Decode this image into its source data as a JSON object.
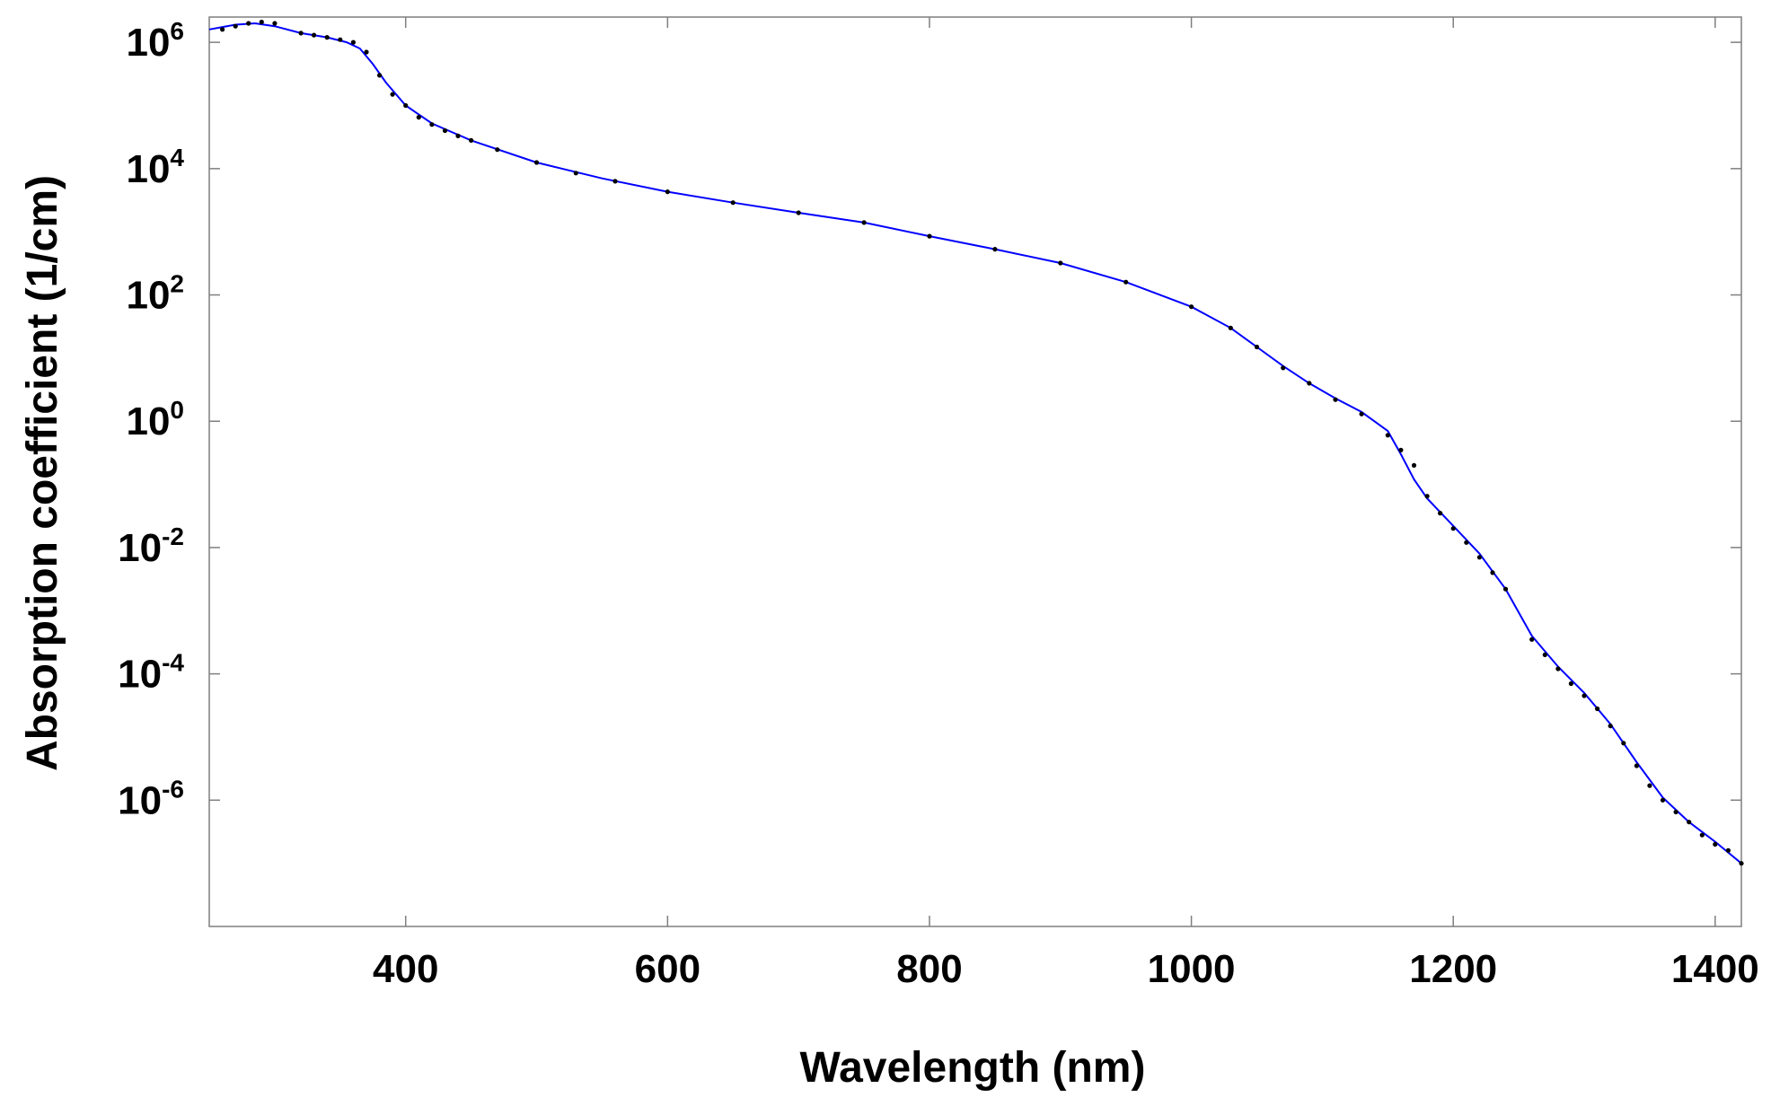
{
  "chart_data": {
    "type": "scatter",
    "xlabel": "Wavelength (nm)",
    "ylabel": "Absorption coefficient (1/cm)",
    "y_scale": "log",
    "xlim": [
      250,
      1420
    ],
    "ylim_exponent": [
      -8.0,
      6.4
    ],
    "x_ticks": [
      400,
      600,
      800,
      1000,
      1200,
      1400
    ],
    "x_tick_labels": [
      "400",
      "600",
      "800",
      "1000",
      "1200",
      "1400"
    ],
    "y_ticks": [
      {
        "base": "10",
        "exp": "6",
        "value_exp": 6
      },
      {
        "base": "10",
        "exp": "4",
        "value_exp": 4
      },
      {
        "base": "10",
        "exp": "2",
        "value_exp": 2
      },
      {
        "base": "10",
        "exp": "0",
        "value_exp": 0
      },
      {
        "base": "10",
        "exp": "-2",
        "value_exp": -2
      },
      {
        "base": "10",
        "exp": "-4",
        "value_exp": -4
      },
      {
        "base": "10",
        "exp": "-6",
        "value_exp": -6
      }
    ],
    "grid": false,
    "series": [
      {
        "kind": "points",
        "color": "#000000",
        "points": [
          [
            260,
            1600000.0
          ],
          [
            270,
            1800000.0
          ],
          [
            280,
            2000000.0
          ],
          [
            290,
            2100000.0
          ],
          [
            300,
            2000000.0
          ],
          [
            320,
            1400000.0
          ],
          [
            330,
            1300000.0
          ],
          [
            340,
            1200000.0
          ],
          [
            350,
            1100000.0
          ],
          [
            360,
            1000000.0
          ],
          [
            370,
            700000.0
          ],
          [
            380,
            300000.0
          ],
          [
            390,
            150000.0
          ],
          [
            400,
            100000.0
          ],
          [
            410,
            65000.0
          ],
          [
            420,
            50000.0
          ],
          [
            430,
            40000.0
          ],
          [
            440,
            33000.0
          ],
          [
            450,
            28000.0
          ],
          [
            470,
            20000.0
          ],
          [
            500,
            12500.0
          ],
          [
            530,
            8500.0
          ],
          [
            560,
            6300.0
          ],
          [
            600,
            4300.0
          ],
          [
            650,
            2900.0
          ],
          [
            700,
            2000.0
          ],
          [
            750,
            1400.0
          ],
          [
            800,
            850.0
          ],
          [
            850,
            530.0
          ],
          [
            900,
            320.0
          ],
          [
            950,
            160.0
          ],
          [
            1000,
            65
          ],
          [
            1030,
            30
          ],
          [
            1050,
            15
          ],
          [
            1070,
            7
          ],
          [
            1090,
            4
          ],
          [
            1110,
            2.2
          ],
          [
            1130,
            1.3
          ],
          [
            1150,
            0.6
          ],
          [
            1160,
            0.35
          ],
          [
            1170,
            0.2
          ],
          [
            1180,
            0.065
          ],
          [
            1190,
            0.035
          ],
          [
            1200,
            0.02
          ],
          [
            1210,
            0.012
          ],
          [
            1220,
            0.007
          ],
          [
            1230,
            0.004
          ],
          [
            1240,
            0.0022
          ],
          [
            1260,
            0.00035
          ],
          [
            1270,
            0.0002
          ],
          [
            1280,
            0.00012
          ],
          [
            1290,
            7e-05
          ],
          [
            1300,
            4.5e-05
          ],
          [
            1310,
            2.8e-05
          ],
          [
            1320,
            1.5e-05
          ],
          [
            1330,
            8e-06
          ],
          [
            1340,
            3.5e-06
          ],
          [
            1350,
            1.7e-06
          ],
          [
            1360,
            1e-06
          ],
          [
            1370,
            6.5e-07
          ],
          [
            1380,
            4.5e-07
          ],
          [
            1390,
            2.8e-07
          ],
          [
            1400,
            2e-07
          ],
          [
            1410,
            1.6e-07
          ],
          [
            1420,
            1e-07
          ]
        ]
      },
      {
        "kind": "line",
        "color": "#0000ff",
        "points": [
          [
            250,
            1600000.0
          ],
          [
            270,
            1900000.0
          ],
          [
            285,
            2000000.0
          ],
          [
            300,
            1800000.0
          ],
          [
            320,
            1400000.0
          ],
          [
            340,
            1200000.0
          ],
          [
            355,
            1000000.0
          ],
          [
            365,
            800000.0
          ],
          [
            375,
            450000.0
          ],
          [
            385,
            230000.0
          ],
          [
            400,
            100000.0
          ],
          [
            420,
            52000.0
          ],
          [
            450,
            28000.0
          ],
          [
            500,
            12500.0
          ],
          [
            550,
            7000.0
          ],
          [
            600,
            4300.0
          ],
          [
            650,
            2900.0
          ],
          [
            700,
            2000.0
          ],
          [
            750,
            1400.0
          ],
          [
            800,
            850.0
          ],
          [
            850,
            530.0
          ],
          [
            900,
            320.0
          ],
          [
            950,
            160.0
          ],
          [
            1000,
            65
          ],
          [
            1030,
            30
          ],
          [
            1050,
            15
          ],
          [
            1070,
            7.5
          ],
          [
            1090,
            4
          ],
          [
            1110,
            2.3
          ],
          [
            1130,
            1.4
          ],
          [
            1150,
            0.7
          ],
          [
            1160,
            0.3
          ],
          [
            1170,
            0.12
          ],
          [
            1180,
            0.06
          ],
          [
            1200,
            0.022
          ],
          [
            1220,
            0.008
          ],
          [
            1240,
            0.0022
          ],
          [
            1260,
            0.0004
          ],
          [
            1280,
            0.00013
          ],
          [
            1300,
            5e-05
          ],
          [
            1320,
            1.6e-05
          ],
          [
            1340,
            4e-06
          ],
          [
            1360,
            1.1e-06
          ],
          [
            1380,
            4.5e-07
          ],
          [
            1400,
            2.2e-07
          ],
          [
            1420,
            1e-07
          ]
        ]
      }
    ]
  }
}
